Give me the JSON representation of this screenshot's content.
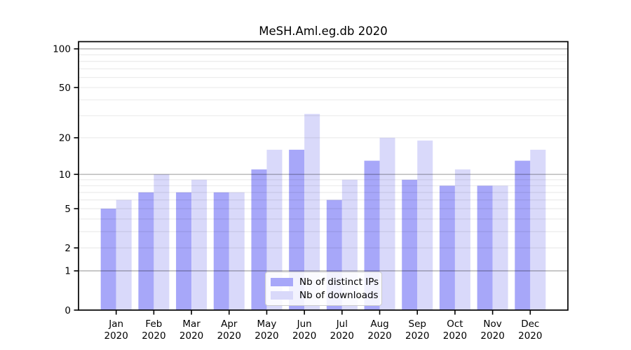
{
  "figure_title": "MeSH.Aml.eg.db 2020",
  "chart_data": {
    "type": "bar",
    "title": "MeSH.Aml.eg.db 2020",
    "x_categories": [
      "Jan 2020",
      "Feb 2020",
      "Mar 2020",
      "Apr 2020",
      "May 2020",
      "Jun 2020",
      "Jul 2020",
      "Aug 2020",
      "Sep 2020",
      "Oct 2020",
      "Nov 2020",
      "Dec 2020"
    ],
    "x_tick_line1": [
      "Jan",
      "Feb",
      "Mar",
      "Apr",
      "May",
      "Jun",
      "Jul",
      "Aug",
      "Sep",
      "Oct",
      "Nov",
      "Dec"
    ],
    "x_tick_line2": [
      "2020",
      "2020",
      "2020",
      "2020",
      "2020",
      "2020",
      "2020",
      "2020",
      "2020",
      "2020",
      "2020",
      "2020"
    ],
    "series": [
      {
        "name": "Nb of distinct IPs",
        "color": "#a7a7f9",
        "values": [
          5,
          7,
          7,
          7,
          11,
          16,
          6,
          13,
          9,
          8,
          8,
          13
        ]
      },
      {
        "name": "Nb of downloads",
        "color": "#d9d9fa",
        "values": [
          6,
          10,
          9,
          7,
          16,
          31,
          9,
          20,
          19,
          11,
          8,
          16
        ]
      }
    ],
    "y_scale": "log1p",
    "ylim": [
      0,
      114
    ],
    "y_tick_labels": [
      "0",
      "1",
      "2",
      "5",
      "10",
      "20",
      "50",
      "100"
    ],
    "y_tick_values": [
      0,
      1,
      2,
      5,
      10,
      20,
      50,
      100
    ],
    "y_minor_gridlines": [
      2,
      3,
      4,
      5,
      6,
      7,
      8,
      9,
      20,
      30,
      40,
      50,
      60,
      70,
      80,
      90
    ],
    "y_major_gridlines": [
      1,
      10,
      100
    ],
    "grid": true,
    "legend_position": "lower center",
    "legend_items": [
      "Nb of distinct IPs",
      "Nb of downloads"
    ],
    "colors": {
      "bar_distinct_ips": "#a7a7f9",
      "bar_downloads": "#d9d9fa",
      "minor_grid": "rgba(0,0,0,0.08)",
      "major_grid": "rgba(0,0,0,0.32)",
      "spine": "#000000",
      "background": "#ffffff"
    }
  }
}
